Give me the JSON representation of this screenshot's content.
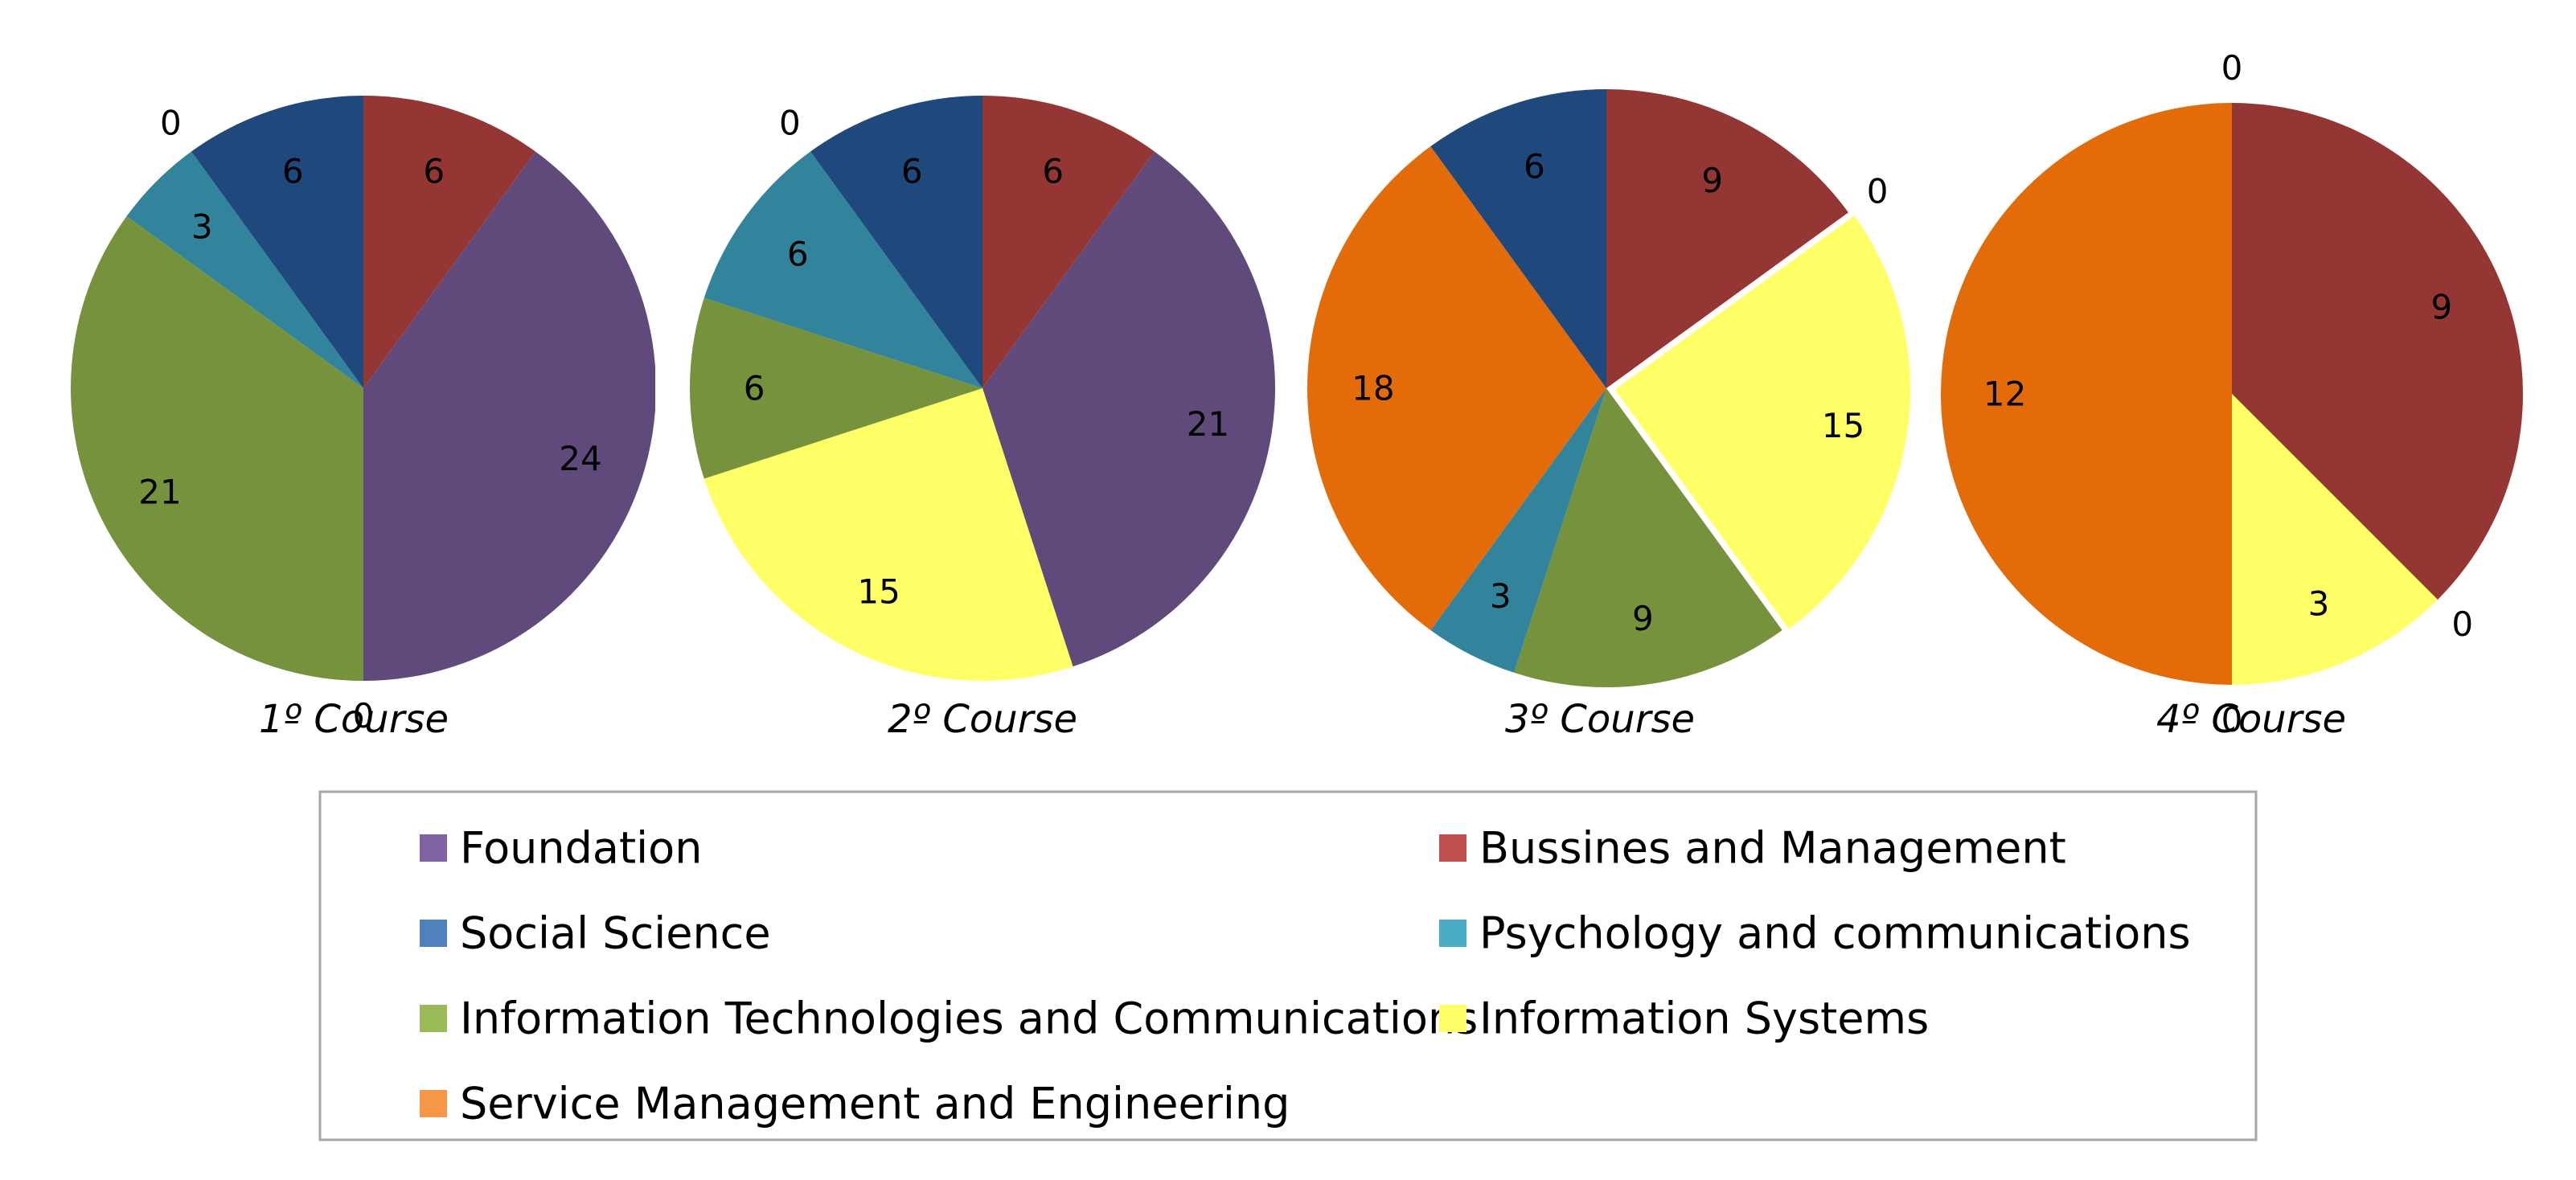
{
  "chart_data": {
    "type": "pie",
    "categories": [
      "Foundation",
      "Bussines and Management",
      "Social Science",
      "Psychology and communications",
      "Information Technologies and Communications",
      "Information Systems",
      "Service Management and Engineering"
    ],
    "colors": {
      "Foundation": "#604a7b",
      "Bussines and Management": "#943634",
      "Social Science": "#1f497d",
      "Psychology and communications": "#31849b",
      "Information Technologies and Communications": "#76923c",
      "Information Systems": "#ffff66",
      "Service Management and Engineering": "#e36c09"
    },
    "legend_colors": {
      "Foundation": "#8064a2",
      "Bussines and Management": "#c0504d",
      "Social Science": "#4f81bd",
      "Psychology and communications": "#4bacc6",
      "Information Technologies and Communications": "#9bbb59",
      "Information Systems": "#ffff66",
      "Service Management and Engineering": "#f79646"
    },
    "pies": [
      {
        "title": "1º Course",
        "slices": [
          {
            "category": "Bussines and Management",
            "value": 6
          },
          {
            "category": "Foundation",
            "value": 24
          },
          {
            "category": "Information Systems",
            "value": 0
          },
          {
            "category": "Information Technologies and Communications",
            "value": 21
          },
          {
            "category": "Psychology and communications",
            "value": 3
          },
          {
            "category": "Service Management and Engineering",
            "value": 0
          },
          {
            "category": "Social Science",
            "value": 6
          }
        ]
      },
      {
        "title": "2º Course",
        "slices": [
          {
            "category": "Bussines and Management",
            "value": 6
          },
          {
            "category": "Foundation",
            "value": 21
          },
          {
            "category": "Information Systems",
            "value": 15
          },
          {
            "category": "Information Technologies and Communications",
            "value": 6
          },
          {
            "category": "Psychology and communications",
            "value": 6
          },
          {
            "category": "Service Management and Engineering",
            "value": 0
          },
          {
            "category": "Social Science",
            "value": 6
          }
        ]
      },
      {
        "title": "3º Course",
        "slices": [
          {
            "category": "Bussines and Management",
            "value": 9
          },
          {
            "category": "Foundation",
            "value": 0
          },
          {
            "category": "Information Systems",
            "value": 15
          },
          {
            "category": "Information Technologies and Communications",
            "value": 9
          },
          {
            "category": "Psychology and communications",
            "value": 3
          },
          {
            "category": "Service Management and Engineering",
            "value": 18
          },
          {
            "category": "Social Science",
            "value": 6
          }
        ]
      },
      {
        "title": "4º Course",
        "slices": [
          {
            "category": "Bussines and Management",
            "value": 9
          },
          {
            "category": "Foundation",
            "value": 0
          },
          {
            "category": "Information Systems",
            "value": 3
          },
          {
            "category": "Psychology and communications",
            "value": 0
          },
          {
            "category": "Service Management and Engineering",
            "value": 12
          },
          {
            "category": "Social Science",
            "value": 0
          }
        ]
      }
    ],
    "legend": [
      "Foundation",
      "Bussines and Management",
      "Social Science",
      "Psychology and communications",
      "Information Technologies and Communications",
      "Information Systems",
      "Service Management and Engineering"
    ]
  }
}
